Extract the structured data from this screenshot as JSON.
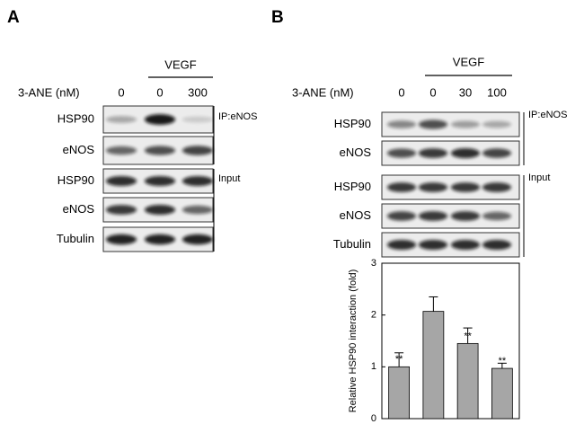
{
  "panel_a": {
    "label": "A",
    "treatment_label": "VEGF",
    "dose_label": "3-ANE (nM)",
    "doses": [
      "0",
      "0",
      "300"
    ],
    "blots": [
      "HSP90",
      "eNOS",
      "HSP90",
      "eNOS",
      "Tubulin"
    ],
    "groups": [
      "IP:eNOS",
      "Input"
    ]
  },
  "panel_b": {
    "label": "B",
    "treatment_label": "VEGF",
    "dose_label": "3-ANE (nM)",
    "doses": [
      "0",
      "0",
      "30",
      "100"
    ],
    "blots": [
      "HSP90",
      "eNOS",
      "HSP90",
      "eNOS",
      "Tubulin"
    ],
    "groups": [
      "IP:eNOS",
      "Input"
    ]
  },
  "chart_data": {
    "type": "bar",
    "ylabel": "Relative HSP90 interaction (fold)",
    "values": [
      1.0,
      2.07,
      1.45,
      0.97
    ],
    "errors": [
      0.27,
      0.28,
      0.3,
      0.1
    ],
    "significance": [
      "**",
      null,
      "**",
      "**"
    ],
    "color": "#a6a6a6",
    "ylim": [
      0,
      3
    ],
    "yticks": [
      0,
      1,
      2,
      3
    ]
  }
}
